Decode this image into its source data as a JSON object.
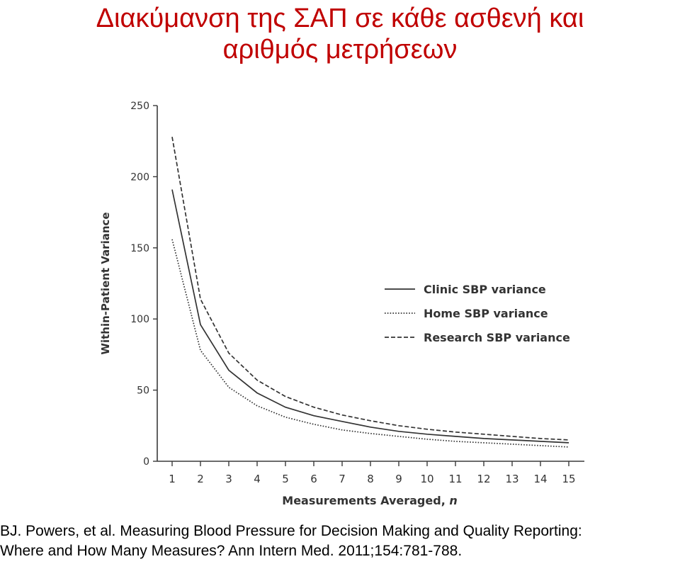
{
  "slide": {
    "title_line1": "Διακύμανση της ΣΑΠ σε κάθε ασθενή και",
    "title_line2": "αριθμός μετρήσεων",
    "citation_line1": "BJ. Powers, et al. Measuring Blood Pressure for Decision Making and Quality Reporting:",
    "citation_line2": "Where and How Many Measures? Ann Intern Med. 2011;154:781-788.",
    "title_color": "#c00000"
  },
  "chart_data": {
    "type": "line",
    "title": "",
    "xlabel": "Measurements Averaged, n",
    "ylabel": "Within-Patient Variance",
    "x": [
      1,
      2,
      3,
      4,
      5,
      6,
      7,
      8,
      9,
      10,
      11,
      12,
      13,
      14,
      15
    ],
    "xlim": [
      1,
      15
    ],
    "ylim": [
      0,
      250
    ],
    "yticks": [
      0,
      50,
      100,
      150,
      200,
      250
    ],
    "grid": false,
    "legend_position": "center-right",
    "series": [
      {
        "name": "Clinic SBP variance",
        "style": "solid",
        "values": [
          191,
          96,
          64,
          48,
          38,
          32,
          28,
          24,
          21,
          19,
          17.5,
          16,
          15,
          14,
          13
        ]
      },
      {
        "name": "Home SBP variance",
        "style": "dotted",
        "values": [
          156,
          78,
          52,
          39,
          31,
          26,
          22,
          19.5,
          17.5,
          15.5,
          14,
          13,
          12,
          11,
          10
        ]
      },
      {
        "name": "Research SBP variance",
        "style": "dashed",
        "values": [
          228,
          114,
          76,
          57,
          45.5,
          38,
          32.5,
          28.5,
          25,
          22.5,
          20.5,
          19,
          17.5,
          16,
          15
        ]
      }
    ]
  }
}
